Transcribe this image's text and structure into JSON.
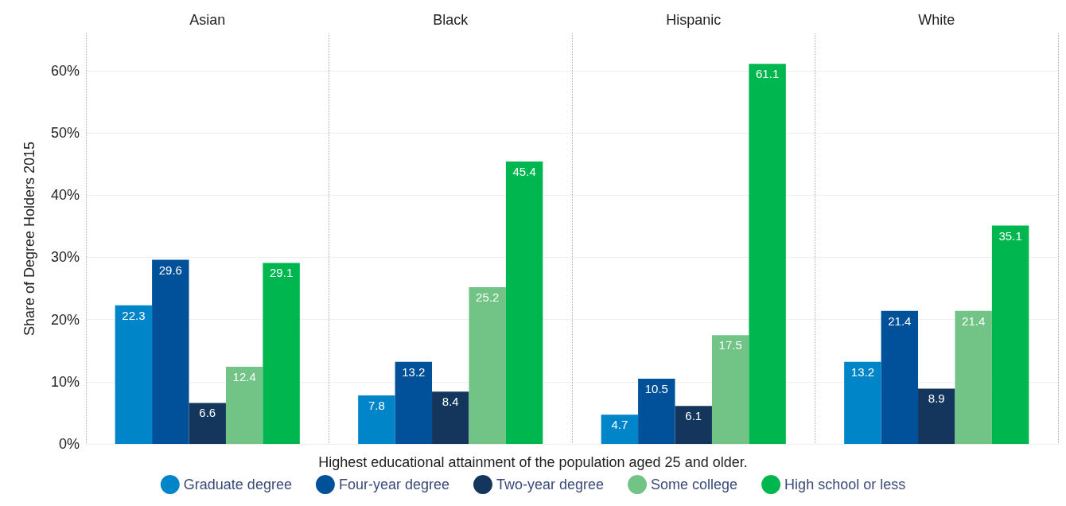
{
  "chart_data": {
    "type": "bar",
    "categories": [
      "Asian",
      "Black",
      "Hispanic",
      "White"
    ],
    "series": [
      {
        "name": "Graduate degree",
        "color": "#0085c8",
        "values": [
          22.3,
          7.8,
          4.7,
          13.2
        ]
      },
      {
        "name": "Four-year degree",
        "color": "#00509a",
        "values": [
          29.6,
          13.2,
          10.5,
          21.4
        ]
      },
      {
        "name": "Two-year degree",
        "color": "#14365d",
        "values": [
          6.6,
          8.4,
          6.1,
          8.9
        ]
      },
      {
        "name": "Some college",
        "color": "#72c386",
        "values": [
          12.4,
          25.2,
          17.5,
          21.4
        ]
      },
      {
        "name": "High school or less",
        "color": "#00b74f",
        "values": [
          29.1,
          45.4,
          61.1,
          35.1
        ]
      }
    ],
    "xlabel": "Highest educational attainment of the population aged 25 and older.",
    "ylabel": "Share of Degree Holders 2015",
    "ylim": [
      0,
      66
    ],
    "yticks": [
      {
        "value": 0,
        "label": "0%"
      },
      {
        "value": 10,
        "label": "10%"
      },
      {
        "value": 20,
        "label": "20%"
      },
      {
        "value": 30,
        "label": "30%"
      },
      {
        "value": 40,
        "label": "40%"
      },
      {
        "value": 50,
        "label": "50%"
      },
      {
        "value": 60,
        "label": "60%"
      }
    ],
    "data_labels": true,
    "grid": true,
    "legend": "bottom"
  }
}
